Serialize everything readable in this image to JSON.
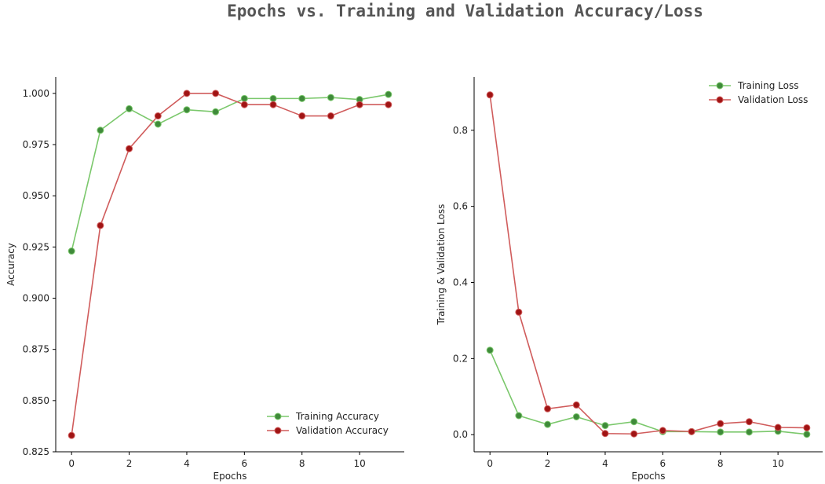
{
  "title": "Epochs vs. Training and Validation Accuracy/Loss",
  "colors": {
    "train_line": "#7bc86c",
    "train_marker": "#3f8a3a",
    "val_line": "#d05c5c",
    "val_marker": "#a01414"
  },
  "chart_data": [
    {
      "type": "line",
      "title": "",
      "xlabel": "Epochs",
      "ylabel": "Accuracy",
      "x": [
        0,
        1,
        2,
        3,
        4,
        5,
        6,
        7,
        8,
        9,
        10,
        11
      ],
      "xlim": [
        -0.55,
        11.55
      ],
      "ylim": [
        0.825,
        1.008
      ],
      "xticks": [
        0,
        2,
        4,
        6,
        8,
        10
      ],
      "yticks": [
        0.825,
        0.85,
        0.875,
        0.9,
        0.925,
        0.95,
        0.975,
        1.0
      ],
      "ytick_labels": [
        "0.825",
        "0.850",
        "0.875",
        "0.900",
        "0.925",
        "0.950",
        "0.975",
        "1.000"
      ],
      "legend_position": "lower-right",
      "series": [
        {
          "name": "Training Accuracy",
          "role": "train",
          "values": [
            0.923,
            0.982,
            0.9925,
            0.985,
            0.992,
            0.991,
            0.9975,
            0.9975,
            0.9975,
            0.998,
            0.997,
            0.9995
          ]
        },
        {
          "name": "Validation Accuracy",
          "role": "val",
          "values": [
            0.833,
            0.9355,
            0.973,
            0.989,
            1.0,
            1.0,
            0.9945,
            0.9945,
            0.989,
            0.989,
            0.9945,
            0.9945
          ]
        }
      ]
    },
    {
      "type": "line",
      "title": "",
      "xlabel": "Epochs",
      "ylabel": "Training & Validation Loss",
      "x": [
        0,
        1,
        2,
        3,
        4,
        5,
        6,
        7,
        8,
        9,
        10,
        11
      ],
      "xlim": [
        -0.55,
        11.55
      ],
      "ylim": [
        -0.045,
        0.94
      ],
      "xticks": [
        0,
        2,
        4,
        6,
        8,
        10
      ],
      "yticks": [
        0.0,
        0.2,
        0.4,
        0.6,
        0.8
      ],
      "ytick_labels": [
        "0.0",
        "0.2",
        "0.4",
        "0.6",
        "0.8"
      ],
      "legend_position": "upper-right",
      "series": [
        {
          "name": "Training Loss",
          "role": "train",
          "values": [
            0.222,
            0.05,
            0.027,
            0.047,
            0.024,
            0.034,
            0.008,
            0.008,
            0.007,
            0.007,
            0.009,
            0.001
          ]
        },
        {
          "name": "Validation Loss",
          "role": "val",
          "values": [
            0.893,
            0.322,
            0.068,
            0.078,
            0.003,
            0.002,
            0.011,
            0.008,
            0.029,
            0.034,
            0.019,
            0.018
          ]
        }
      ]
    }
  ]
}
